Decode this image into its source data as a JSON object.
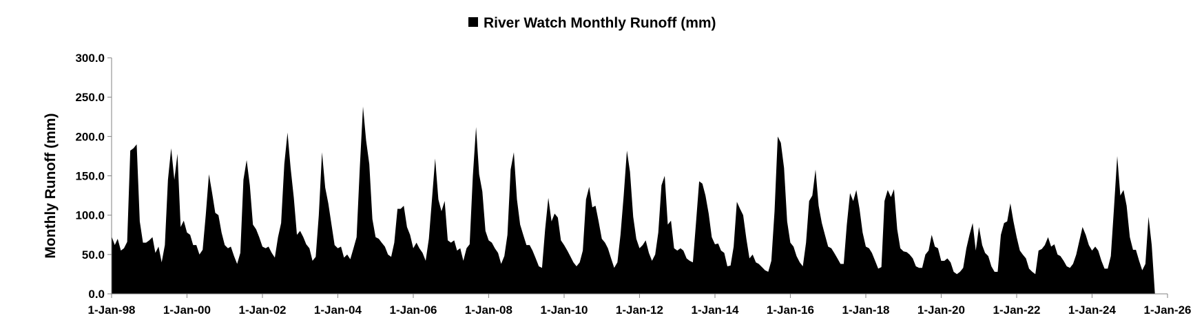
{
  "chart_data": {
    "type": "area",
    "legend": {
      "label": "River Watch Monthly Runoff (mm)",
      "position": "top-center"
    },
    "ylabel": "Monthly Runoff (mm)",
    "xlabel": "",
    "ylim": [
      0,
      300
    ],
    "yticks": [
      "0.0",
      "50.0",
      "100.0",
      "150.0",
      "200.0",
      "250.0",
      "300.0"
    ],
    "xlim": [
      "1998-01-01",
      "2026-01-01"
    ],
    "xticks": [
      "1-Jan-98",
      "1-Jan-00",
      "1-Jan-02",
      "1-Jan-04",
      "1-Jan-06",
      "1-Jan-08",
      "1-Jan-10",
      "1-Jan-12",
      "1-Jan-14",
      "1-Jan-16",
      "1-Jan-18",
      "1-Jan-20",
      "1-Jan-22",
      "1-Jan-24",
      "1-Jan-26"
    ],
    "grid": false,
    "series_color": "#000000",
    "series": [
      {
        "name": "River Watch Monthly Runoff (mm)",
        "x_start": "1998-01",
        "frequency": "monthly",
        "values": [
          73,
          62,
          70,
          55,
          58,
          66,
          182,
          185,
          190,
          92,
          65,
          65,
          68,
          72,
          52,
          60,
          40,
          62,
          145,
          185,
          145,
          178,
          85,
          93,
          78,
          75,
          62,
          62,
          50,
          56,
          100,
          152,
          128,
          103,
          100,
          78,
          62,
          58,
          60,
          48,
          38,
          52,
          145,
          170,
          138,
          88,
          82,
          72,
          60,
          58,
          60,
          52,
          46,
          72,
          90,
          165,
          205,
          160,
          122,
          75,
          80,
          72,
          63,
          58,
          42,
          47,
          100,
          180,
          135,
          115,
          88,
          62,
          58,
          60,
          46,
          50,
          44,
          58,
          72,
          160,
          238,
          195,
          165,
          95,
          72,
          70,
          65,
          60,
          50,
          47,
          65,
          108,
          108,
          112,
          85,
          75,
          58,
          65,
          58,
          52,
          42,
          70,
          120,
          172,
          120,
          105,
          118,
          68,
          65,
          68,
          55,
          58,
          42,
          58,
          63,
          150,
          212,
          152,
          130,
          80,
          68,
          65,
          58,
          52,
          38,
          48,
          75,
          158,
          180,
          120,
          88,
          75,
          62,
          62,
          55,
          45,
          35,
          33,
          82,
          122,
          92,
          102,
          97,
          68,
          62,
          55,
          48,
          40,
          35,
          40,
          55,
          120,
          136,
          110,
          112,
          92,
          70,
          65,
          58,
          45,
          33,
          40,
          75,
          125,
          182,
          155,
          98,
          70,
          58,
          62,
          68,
          52,
          42,
          50,
          78,
          138,
          150,
          88,
          93,
          58,
          55,
          58,
          55,
          45,
          42,
          40,
          90,
          143,
          140,
          125,
          102,
          72,
          63,
          64,
          55,
          52,
          35,
          36,
          60,
          117,
          108,
          100,
          70,
          45,
          50,
          40,
          38,
          34,
          30,
          28,
          42,
          105,
          200,
          192,
          160,
          92,
          65,
          60,
          48,
          40,
          35,
          65,
          118,
          125,
          158,
          112,
          90,
          75,
          60,
          58,
          52,
          45,
          38,
          38,
          88,
          128,
          118,
          132,
          108,
          78,
          60,
          58,
          52,
          42,
          32,
          34,
          118,
          132,
          123,
          133,
          82,
          58,
          54,
          53,
          50,
          45,
          35,
          33,
          33,
          50,
          55,
          75,
          60,
          58,
          42,
          42,
          45,
          40,
          28,
          25,
          28,
          33,
          58,
          75,
          90,
          55,
          85,
          62,
          52,
          48,
          35,
          28,
          28,
          75,
          90,
          92,
          115,
          92,
          72,
          55,
          50,
          45,
          32,
          28,
          25,
          55,
          57,
          62,
          72,
          60,
          63,
          50,
          48,
          42,
          35,
          33,
          38,
          50,
          68,
          85,
          75,
          62,
          55,
          60,
          55,
          42,
          32,
          32,
          48,
          110,
          175,
          125,
          132,
          112,
          72,
          56,
          56,
          42,
          30,
          38,
          98,
          62,
          0
        ]
      }
    ]
  }
}
